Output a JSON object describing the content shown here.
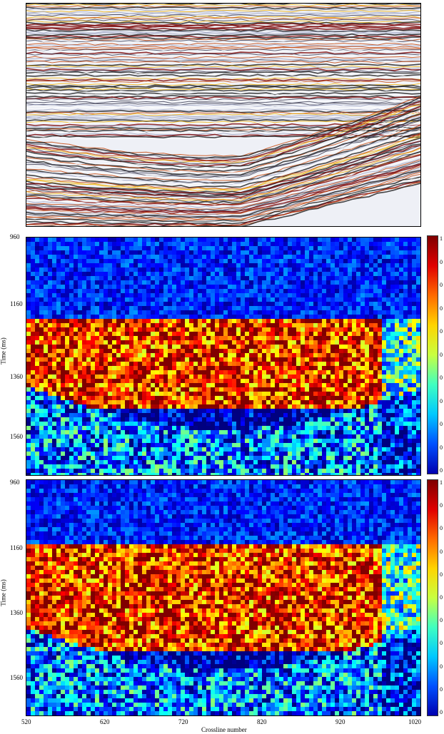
{
  "chart_data": [
    {
      "type": "heatmap",
      "panel": "seismic-section",
      "title": "",
      "colormap": "seismic (black-white-yellow-red)"
    },
    {
      "type": "heatmap",
      "panel": "attribute-1",
      "title": "",
      "ylabel": "Time (ms)",
      "yticks": [
        "960",
        "1160",
        "1360",
        "1560"
      ],
      "ylim": [
        960,
        1660
      ],
      "xlim": [
        520,
        1020
      ],
      "colorbar_labels": [
        "1",
        "0",
        "0",
        "0",
        "0",
        "0",
        "0",
        "0",
        "0",
        "0",
        "0"
      ],
      "colormap": "jet"
    },
    {
      "type": "heatmap",
      "panel": "attribute-2",
      "title": "",
      "ylabel": "Time (ms)",
      "yticks": [
        "960",
        "1160",
        "1360",
        "1560"
      ],
      "xlabel": "Crossline number",
      "xticks": [
        "520",
        "620",
        "720",
        "820",
        "920",
        "1020"
      ],
      "ylim": [
        960,
        1660
      ],
      "xlim": [
        520,
        1020
      ],
      "colorbar_labels": [
        "1",
        "0",
        "0",
        "0",
        "0",
        "0",
        "0",
        "0",
        "0",
        "0",
        "0"
      ],
      "colormap": "jet"
    }
  ]
}
